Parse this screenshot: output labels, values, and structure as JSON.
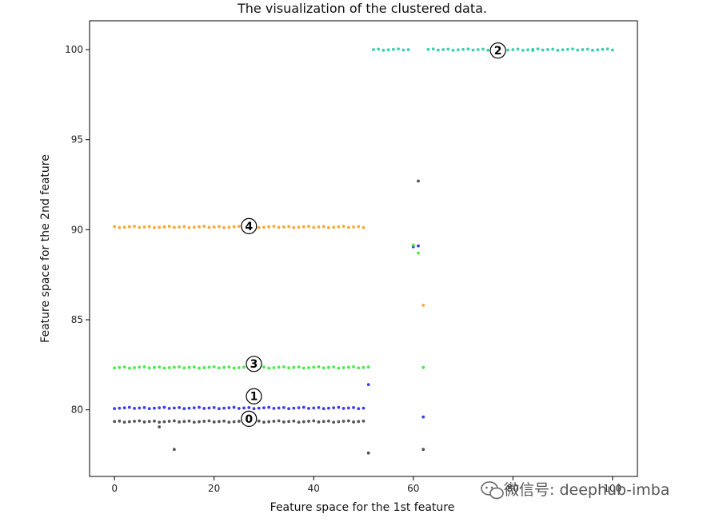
{
  "chart_data": {
    "type": "scatter",
    "title": "The visualization of the clustered data.",
    "xlabel": "Feature space for the 1st feature",
    "ylabel": "Feature space for the 2nd feature",
    "xlim": [
      -5,
      105
    ],
    "ylim": [
      76.3,
      101.6
    ],
    "xticks": [
      0,
      20,
      40,
      60,
      80,
      100
    ],
    "yticks": [
      80,
      85,
      90,
      95,
      100
    ],
    "grid": false,
    "clusters": [
      {
        "label": "0",
        "color": "#555555",
        "center": [
          27,
          79.5
        ],
        "regular": {
          "x_start": 0,
          "x_end": 50,
          "y": 79.35
        },
        "extra_points": [
          [
            9,
            79.05
          ],
          [
            12,
            77.8
          ],
          [
            51,
            77.6
          ],
          [
            61,
            92.7
          ],
          [
            62,
            77.8
          ]
        ]
      },
      {
        "label": "1",
        "color": "#3c3cf0",
        "center": [
          28,
          80.75
        ],
        "regular": {
          "x_start": 0,
          "x_end": 50,
          "y": 80.1
        },
        "extra_points": [
          [
            51,
            81.4
          ],
          [
            60,
            89.05
          ],
          [
            61,
            89.1
          ],
          [
            62,
            79.6
          ]
        ]
      },
      {
        "label": "2",
        "color": "#3ccfae",
        "center": [
          77,
          99.95
        ],
        "regular": {
          "x_start": 52,
          "x_end": 100,
          "y": 100.0,
          "gap": [
            60,
            62
          ]
        },
        "extra_points": [
          [
            84,
            99.95
          ]
        ]
      },
      {
        "label": "3",
        "color": "#44ee44",
        "center": [
          28,
          82.55
        ],
        "regular": {
          "x_start": 0,
          "x_end": 51,
          "y": 82.35
        },
        "extra_points": [
          [
            60,
            89.15
          ],
          [
            61,
            88.7
          ],
          [
            62,
            82.35
          ]
        ]
      },
      {
        "label": "4",
        "color": "#ffa733",
        "center": [
          27,
          90.2
        ],
        "regular": {
          "x_start": 0,
          "x_end": 50,
          "y": 90.15
        },
        "extra_points": [
          [
            62,
            85.8
          ]
        ]
      }
    ]
  },
  "watermark": {
    "text": "微信号: deephub-imba",
    "icon": "wechat-icon"
  }
}
